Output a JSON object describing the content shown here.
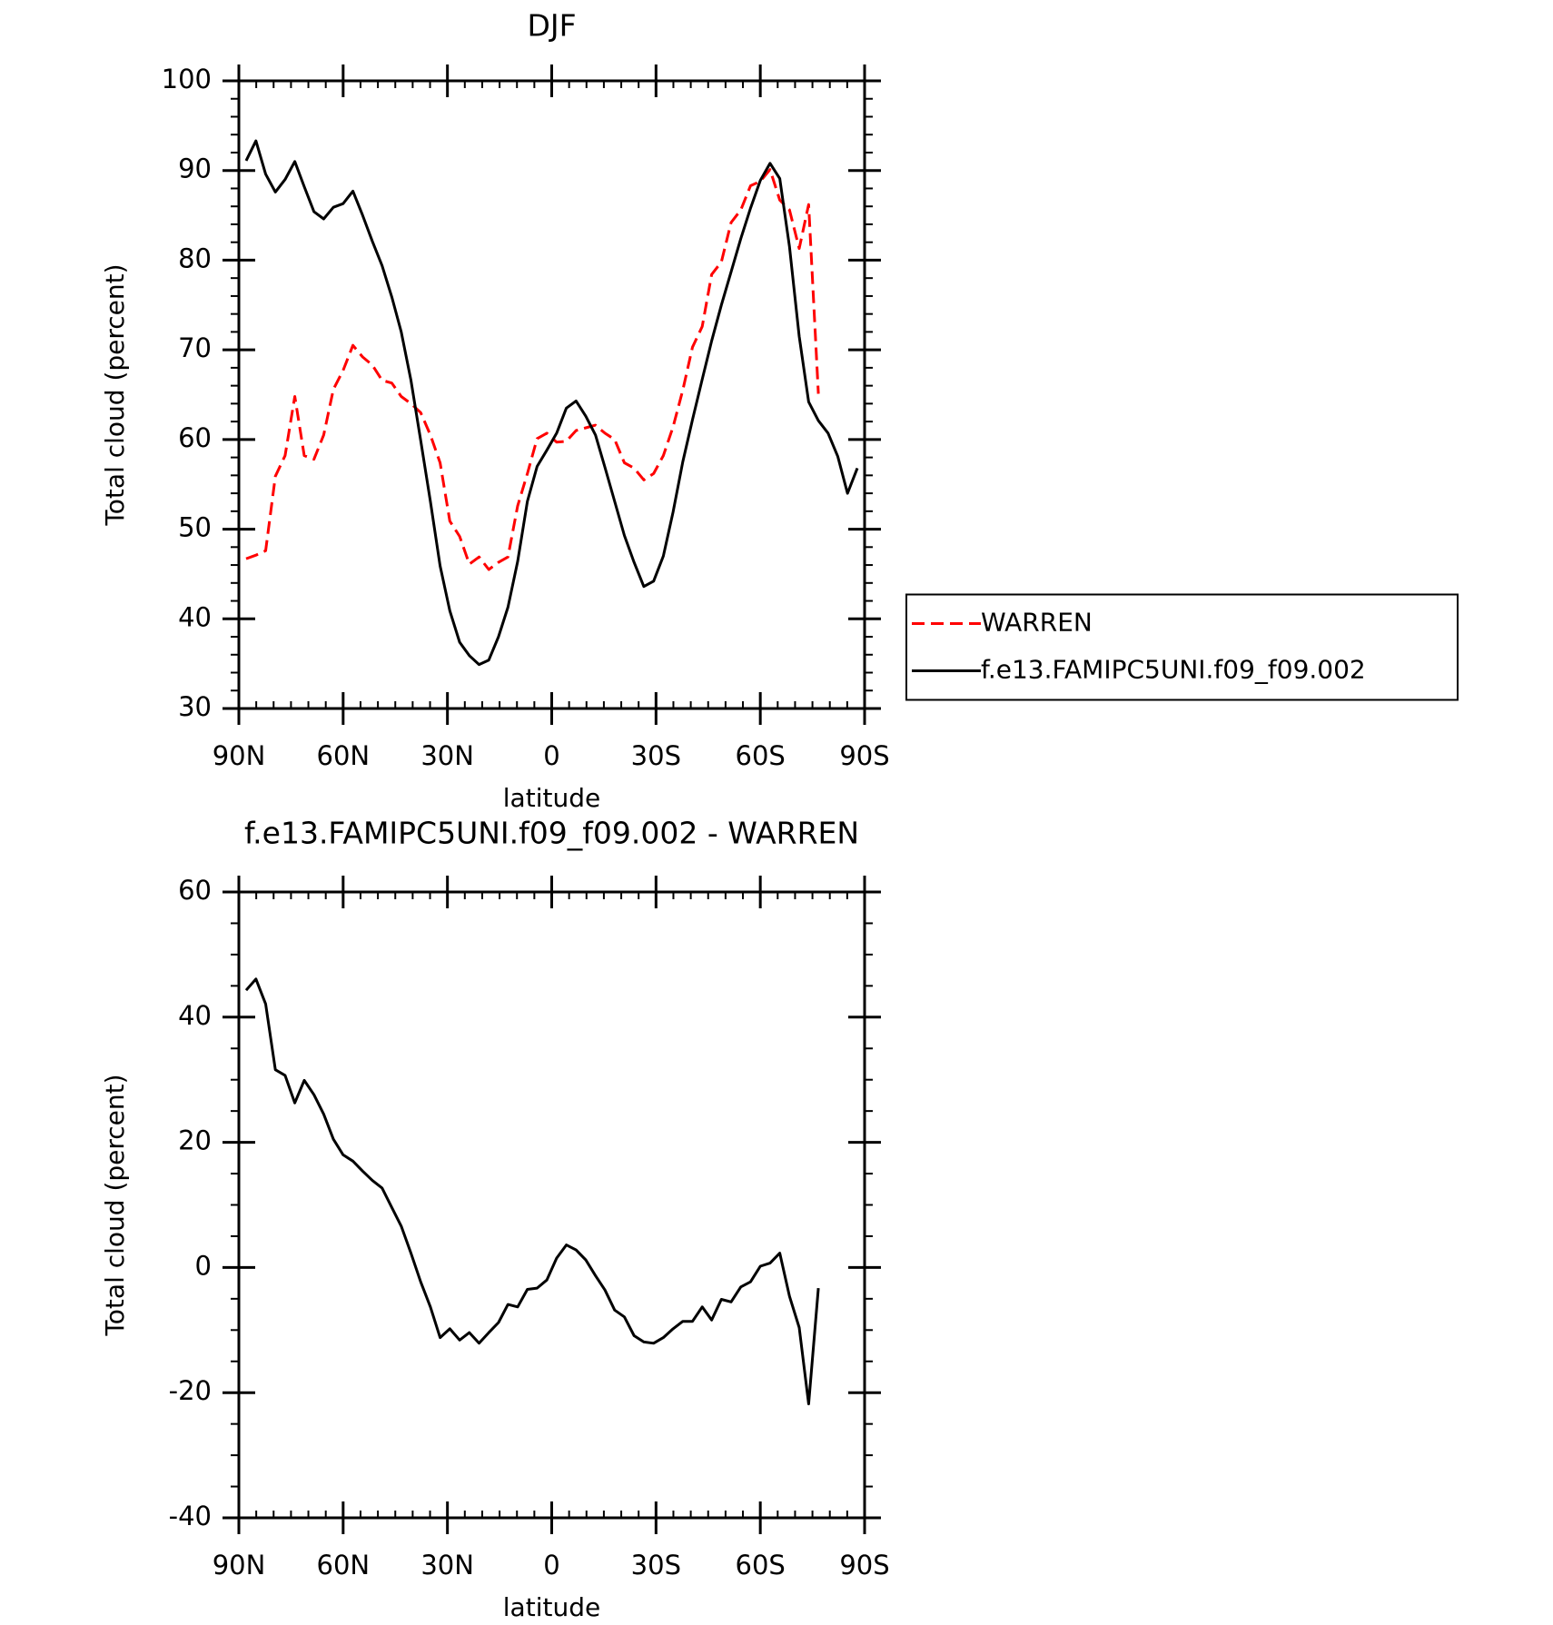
{
  "chart_data": [
    {
      "type": "line",
      "title": "DJF",
      "xlabel": "latitude",
      "ylabel": "Total cloud (percent)",
      "x": [
        87.9,
        85.1,
        82.3,
        79.5,
        76.7,
        73.9,
        71.2,
        68.4,
        65.6,
        62.8,
        60.0,
        57.2,
        54.4,
        51.6,
        48.8,
        46.0,
        43.3,
        40.5,
        37.7,
        34.9,
        32.1,
        29.3,
        26.5,
        23.7,
        20.9,
        18.1,
        15.3,
        12.6,
        9.8,
        7.0,
        4.2,
        1.4,
        -1.4,
        -4.2,
        -7.0,
        -9.8,
        -12.6,
        -15.3,
        -18.1,
        -20.9,
        -23.7,
        -26.5,
        -29.3,
        -32.1,
        -34.9,
        -37.7,
        -40.5,
        -43.3,
        -46.0,
        -48.8,
        -51.6,
        -54.4,
        -57.2,
        -60.0,
        -62.8,
        -65.6,
        -68.4,
        -71.2,
        -73.9,
        -76.7,
        -79.5,
        -82.3,
        -85.1,
        -87.9
      ],
      "series": [
        {
          "name": "WARREN",
          "color": "#ff0000",
          "linestyle": "dashed",
          "values": [
            46.7,
            47.1,
            47.6,
            55.9,
            58.2,
            64.8,
            58.2,
            57.8,
            60.5,
            65.6,
            67.7,
            70.5,
            69.2,
            68.3,
            66.6,
            66.3,
            64.8,
            64,
            63,
            60.5,
            57.4,
            50.9,
            49.2,
            46.1,
            46.9,
            45.5,
            46.3,
            46.9,
            52.6,
            56.2,
            60.1,
            60.7,
            59.7,
            59.8,
            61,
            61.3,
            61.6,
            60.7,
            60,
            57.4,
            56.8,
            55.5,
            56.2,
            58.2,
            61.4,
            65.5,
            70.3,
            72.6,
            78.4,
            79.8,
            84.2,
            85.6,
            88.3,
            88.8,
            90.1,
            86.7,
            85.6,
            81.3,
            86.2,
            65.1,
            null,
            null,
            null,
            null
          ]
        },
        {
          "name": "f.e13.FAMIPC5UNI.f09_f09.002",
          "color": "#000000",
          "linestyle": "solid",
          "values": [
            91.1,
            93.3,
            89.6,
            87.6,
            89,
            91,
            88.2,
            85.4,
            84.6,
            85.9,
            86.3,
            87.7,
            85,
            82.1,
            79.4,
            75.9,
            72,
            66.6,
            59.9,
            53.1,
            45.9,
            40.9,
            37.4,
            35.9,
            34.9,
            35.4,
            38,
            41.3,
            46.4,
            53.1,
            57,
            58.8,
            60.7,
            63.5,
            64.3,
            62.6,
            60.5,
            56.9,
            53.1,
            49.3,
            46.3,
            43.6,
            44.2,
            47,
            51.9,
            57.5,
            62.2,
            66.7,
            71,
            75,
            78.7,
            82.4,
            85.8,
            88.9,
            90.8,
            89.1,
            81.5,
            71.5,
            64.2,
            62.1,
            60.7,
            58.1,
            54,
            56.8
          ]
        }
      ],
      "xlim": [
        90,
        -90
      ],
      "xticks": [
        {
          "value": 90,
          "label": "90N"
        },
        {
          "value": 60,
          "label": "60N"
        },
        {
          "value": 30,
          "label": "30N"
        },
        0,
        {
          "value": -30,
          "label": "30S"
        },
        {
          "value": -60,
          "label": "60S"
        },
        {
          "value": -90,
          "label": "90S"
        }
      ],
      "ylim": [
        30,
        100
      ],
      "yticks": [
        30,
        40,
        50,
        60,
        70,
        80,
        90,
        100
      ],
      "legend": "right"
    },
    {
      "type": "line",
      "title": "f.e13.FAMIPC5UNI.f09_f09.002 - WARREN",
      "xlabel": "latitude",
      "ylabel": "Total cloud (percent)",
      "x": [
        87.9,
        85.1,
        82.3,
        79.5,
        76.7,
        73.9,
        71.2,
        68.4,
        65.6,
        62.8,
        60.0,
        57.2,
        54.4,
        51.6,
        48.8,
        46.0,
        43.3,
        40.5,
        37.7,
        34.9,
        32.1,
        29.3,
        26.5,
        23.7,
        20.9,
        18.1,
        15.3,
        12.6,
        9.8,
        7.0,
        4.2,
        1.4,
        -1.4,
        -4.2,
        -7.0,
        -9.8,
        -12.6,
        -15.3,
        -18.1,
        -20.9,
        -23.7,
        -26.5,
        -29.3,
        -32.1,
        -34.9,
        -37.7,
        -40.5,
        -43.3,
        -46.0,
        -48.8,
        -51.6,
        -54.4,
        -57.2,
        -60.0,
        -62.8,
        -65.6,
        -68.4,
        -71.2,
        -73.9,
        -76.7,
        -79.5,
        -82.3,
        -85.1,
        -87.9
      ],
      "series": [
        {
          "color": "#000000",
          "linestyle": "solid",
          "values": [
            44.3,
            46.1,
            42.1,
            31.6,
            30.7,
            26.3,
            29.9,
            27.6,
            24.5,
            20.5,
            18,
            17,
            15.4,
            13.9,
            12.7,
            9.6,
            6.6,
            2.3,
            -2.3,
            -6.3,
            -11.2,
            -9.8,
            -11.6,
            -10.4,
            -12.1,
            -10.4,
            -8.8,
            -5.9,
            -6.3,
            -3.5,
            -3.3,
            -2,
            1.5,
            3.6,
            2.8,
            1.2,
            -1.3,
            -3.6,
            -6.8,
            -7.9,
            -10.9,
            -11.9,
            -12.1,
            -11.2,
            -9.8,
            -8.6,
            -8.6,
            -6.3,
            -8.4,
            -5.1,
            -5.5,
            -3.1,
            -2.3,
            0.2,
            0.7,
            2.3,
            -4.6,
            -9.6,
            -21.8,
            -3.3,
            null,
            null,
            null,
            null
          ]
        }
      ],
      "xlim": [
        90,
        -90
      ],
      "xticks": [
        {
          "value": 90,
          "label": "90N"
        },
        {
          "value": 60,
          "label": "60N"
        },
        {
          "value": 30,
          "label": "30N"
        },
        0,
        {
          "value": -30,
          "label": "30S"
        },
        {
          "value": -60,
          "label": "60S"
        },
        {
          "value": -90,
          "label": "90S"
        }
      ],
      "ylim": [
        -40,
        60
      ],
      "yticks": [
        -40,
        -20,
        0,
        20,
        40,
        60
      ]
    }
  ]
}
